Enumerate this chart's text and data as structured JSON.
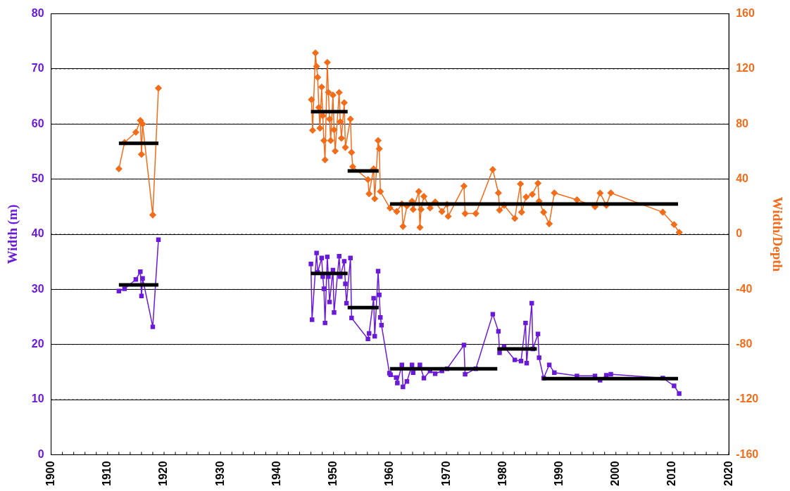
{
  "chart_data": {
    "type": "line",
    "ylabel": "Width (m)",
    "y2label": "Width/Depth",
    "xlim": [
      1900,
      2020
    ],
    "xticks": [
      1900,
      1910,
      1920,
      1930,
      1940,
      1950,
      1960,
      1970,
      1980,
      1990,
      2000,
      2010,
      2020
    ],
    "ylim": [
      0,
      80
    ],
    "yticks": [
      0,
      10,
      20,
      30,
      40,
      50,
      60,
      70,
      80
    ],
    "y2lim": [
      -160,
      160
    ],
    "y2ticks": [
      -160,
      -120,
      -80,
      -40,
      0,
      40,
      80,
      120,
      160
    ],
    "grid": "y",
    "legend": false,
    "line_style": "solid",
    "series": [
      {
        "color": "#6a1ad8",
        "marker": "square",
        "x": [
          1912,
          1913,
          1915,
          1915.8,
          1916,
          1916.2,
          1918,
          1919,
          1930,
          1946,
          1946.2,
          1947,
          1947.2,
          1947.9,
          1948.1,
          1948.3,
          1948.5,
          1948.9,
          1949.1,
          1949.3,
          1949.9,
          1950.1,
          1951,
          1951.2,
          1951.9,
          1952.1,
          1952.3,
          1953,
          1953.2,
          1956.1,
          1956.3,
          1957.1,
          1957.3,
          1957.9,
          1958.1,
          1958.3,
          1958.5,
          1959.9,
          1960.1,
          1961.1,
          1961.3,
          1962.1,
          1962.3,
          1963,
          1963.9,
          1964.1,
          1965.3,
          1966,
          1967.1,
          1968,
          1969.2,
          1970.1,
          1973.1,
          1973.3,
          1975.2,
          1978.2,
          1979.2,
          1979.4,
          1980.2,
          1982.1,
          1983.2,
          1984,
          1984.2,
          1985.1,
          1985.3,
          1986.2,
          1986.4,
          1987.2,
          1988.2,
          1989.1,
          1993.1,
          1996.3,
          1997.2,
          1998.3,
          1999.1,
          2008.3,
          2010.3,
          2011.2
        ],
        "values": [
          29.7,
          30.1,
          31.8,
          33.2,
          28.8,
          32,
          23.2,
          39,
          null,
          34.6,
          24.5,
          36.6,
          33.1,
          35.7,
          32.3,
          30.1,
          23.9,
          35.9,
          32.3,
          27.7,
          33.5,
          25.8,
          36,
          32.3,
          35.1,
          31,
          27.5,
          35.7,
          24.8,
          21,
          22,
          28.4,
          21.5,
          33.3,
          29,
          24.9,
          23.5,
          14.8,
          14.5,
          14,
          13,
          16.3,
          12.3,
          13.3,
          16.3,
          14.9,
          16.3,
          13.9,
          15.2,
          14.7,
          15.2,
          15.6,
          19.9,
          14.6,
          15.6,
          25.5,
          22.4,
          18.5,
          19.6,
          17.2,
          17,
          23.9,
          16.6,
          27.5,
          19.2,
          21.9,
          17.6,
          13.9,
          16.3,
          14.9,
          14.3,
          14.3,
          13.5,
          14.4,
          14.6,
          13.9,
          12.5,
          11.1
        ]
      },
      {
        "color": "#f26c1a",
        "marker": "diamond",
        "axis": "y2",
        "x": [
          1912,
          1913,
          1915,
          1915.8,
          1916,
          1916.2,
          1918,
          1919,
          1930,
          1946.1,
          1946.3,
          1946.8,
          1947,
          1947.2,
          1947.4,
          1947.6,
          1947.9,
          1948.1,
          1948.3,
          1948.5,
          1948.9,
          1949.1,
          1949.3,
          1949.5,
          1949.9,
          1950.1,
          1950.3,
          1951,
          1951.2,
          1951.4,
          1951.9,
          1952.1,
          1953,
          1953.2,
          1953.4,
          1956.1,
          1956.3,
          1957.1,
          1957.3,
          1957.9,
          1958.1,
          1958.3,
          1960,
          1961.2,
          1962.1,
          1962.3,
          1963,
          1963.9,
          1964.1,
          1965.1,
          1965.3,
          1965.5,
          1966,
          1967.1,
          1968,
          1969.2,
          1970.1,
          1970.3,
          1973.1,
          1973.3,
          1975.2,
          1978.2,
          1979.2,
          1979.4,
          1980.2,
          1982.1,
          1983.1,
          1983.3,
          1984.1,
          1985.2,
          1986.2,
          1986.4,
          1987.2,
          1988.2,
          1989.1,
          1993.1,
          1996.3,
          1997.2,
          1998.3,
          1999.1,
          2008.3,
          2010.3,
          2011.2
        ],
        "values": [
          47.5,
          66.6,
          74,
          82.6,
          58,
          80,
          14,
          106,
          null,
          97.7,
          75.4,
          131.6,
          121.8,
          113.9,
          92,
          77,
          106.8,
          86,
          68,
          54,
          124.7,
          103,
          83.6,
          68,
          101,
          75.8,
          60.4,
          102.9,
          81.7,
          69.7,
          95.5,
          63,
          83.6,
          59.4,
          49,
          39.7,
          29.4,
          47.5,
          25.8,
          68,
          62,
          31,
          19,
          16.5,
          22,
          5.7,
          20.6,
          24,
          18,
          31,
          5,
          18,
          27.5,
          19,
          23.5,
          16.5,
          21.7,
          13,
          35,
          15,
          15,
          47,
          30,
          17.5,
          21,
          11.5,
          36.5,
          16,
          27,
          29,
          37,
          24,
          16,
          7.6,
          30,
          25,
          20,
          29.9,
          21,
          30,
          16,
          7,
          1.4
        ]
      },
      {
        "color": "#000000",
        "marker": "none",
        "x": [
          1912,
          1919
        ],
        "values": [
          30.8,
          30.8
        ]
      },
      {
        "color": "#000000",
        "marker": "none",
        "x": [
          1946,
          1952.5
        ],
        "values": [
          32.9,
          32.9
        ]
      },
      {
        "color": "#000000",
        "marker": "none",
        "x": [
          1952.5,
          1958
        ],
        "values": [
          26.7,
          26.7
        ]
      },
      {
        "color": "#000000",
        "marker": "none",
        "x": [
          1960,
          1979
        ],
        "values": [
          15.6,
          15.6
        ]
      },
      {
        "color": "#000000",
        "marker": "none",
        "x": [
          1979,
          1986
        ],
        "values": [
          19.2,
          19.2
        ]
      },
      {
        "color": "#000000",
        "marker": "none",
        "x": [
          1987,
          2011
        ],
        "values": [
          13.8,
          13.8
        ]
      },
      {
        "color": "#000000",
        "marker": "none",
        "axis": "y2",
        "x": [
          1912,
          1919
        ],
        "values": [
          66,
          66
        ]
      },
      {
        "color": "#000000",
        "marker": "none",
        "axis": "y2",
        "x": [
          1946,
          1952.5
        ],
        "values": [
          89,
          89
        ]
      },
      {
        "color": "#000000",
        "marker": "none",
        "axis": "y2",
        "x": [
          1952.5,
          1958
        ],
        "values": [
          46,
          46
        ]
      },
      {
        "color": "#000000",
        "marker": "none",
        "axis": "y2",
        "x": [
          1960,
          2011
        ],
        "values": [
          22,
          22
        ]
      }
    ]
  }
}
